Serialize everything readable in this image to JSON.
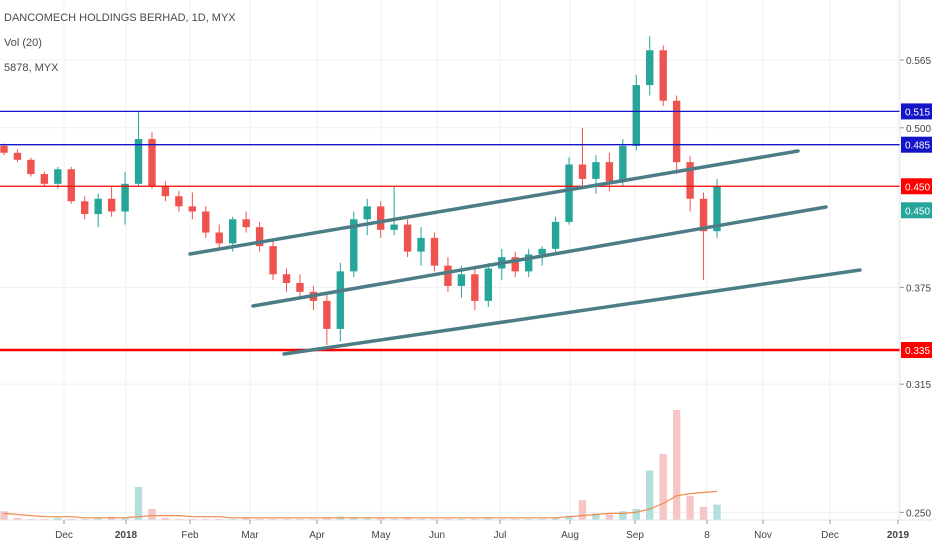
{
  "header": {
    "symbol_title": "DANCOMECH HOLDINGS BERHAD, 1D, MYX",
    "volume_indicator": "Vol (20)",
    "ticker_line": "5878, MYX"
  },
  "colors": {
    "up": "#26a69a",
    "down": "#ef5350",
    "channel": "#4c7d86",
    "blue_level": "#1414c8",
    "red_level": "#ff0000",
    "volume_ma": "#f28c4a"
  },
  "chart_data": {
    "type": "candlestick",
    "title": "DANCOMECH HOLDINGS BERHAD, 1D, MYX",
    "ylim": [
      0.203,
      0.59
    ],
    "y_scale": "log",
    "y_ticks": [
      "0.565",
      "0.500",
      "0.375",
      "0.315",
      "0.250"
    ],
    "x_ticks": [
      "Dec",
      "2018",
      "Feb",
      "Mar",
      "Apr",
      "May",
      "Jun",
      "Jul",
      "Aug",
      "Sep",
      "8",
      "Nov",
      "Dec",
      "2019"
    ],
    "last_price": 0.45,
    "grid": true,
    "price_series": [
      {
        "x": "Nov",
        "open": 0.484,
        "high": 0.486,
        "low": 0.476,
        "close": 0.478
      },
      {
        "x": "Nov",
        "open": 0.478,
        "high": 0.481,
        "low": 0.47,
        "close": 0.472
      },
      {
        "x": "Dec",
        "open": 0.472,
        "high": 0.474,
        "low": 0.458,
        "close": 0.46
      },
      {
        "x": "Dec",
        "open": 0.46,
        "high": 0.462,
        "low": 0.45,
        "close": 0.452
      },
      {
        "x": "Dec",
        "open": 0.452,
        "high": 0.466,
        "low": 0.448,
        "close": 0.464
      },
      {
        "x": "Dec",
        "open": 0.464,
        "high": 0.466,
        "low": 0.436,
        "close": 0.438
      },
      {
        "x": "Dec",
        "open": 0.438,
        "high": 0.442,
        "low": 0.424,
        "close": 0.428
      },
      {
        "x": "Dec",
        "open": 0.428,
        "high": 0.444,
        "low": 0.418,
        "close": 0.44
      },
      {
        "x": "2018",
        "open": 0.44,
        "high": 0.45,
        "low": 0.426,
        "close": 0.43
      },
      {
        "x": "2018",
        "open": 0.43,
        "high": 0.462,
        "low": 0.42,
        "close": 0.452
      },
      {
        "x": "2018",
        "open": 0.452,
        "high": 0.515,
        "low": 0.45,
        "close": 0.49
      },
      {
        "x": "2018",
        "open": 0.49,
        "high": 0.496,
        "low": 0.448,
        "close": 0.45
      },
      {
        "x": "2018",
        "open": 0.45,
        "high": 0.454,
        "low": 0.438,
        "close": 0.442
      },
      {
        "x": "2018",
        "open": 0.442,
        "high": 0.446,
        "low": 0.43,
        "close": 0.434
      },
      {
        "x": "2018",
        "open": 0.434,
        "high": 0.445,
        "low": 0.424,
        "close": 0.43
      },
      {
        "x": "Feb",
        "open": 0.43,
        "high": 0.434,
        "low": 0.41,
        "close": 0.414
      },
      {
        "x": "Feb",
        "open": 0.414,
        "high": 0.42,
        "low": 0.402,
        "close": 0.406
      },
      {
        "x": "Feb",
        "open": 0.406,
        "high": 0.426,
        "low": 0.4,
        "close": 0.424
      },
      {
        "x": "Feb",
        "open": 0.424,
        "high": 0.43,
        "low": 0.414,
        "close": 0.418
      },
      {
        "x": "Mar",
        "open": 0.418,
        "high": 0.422,
        "low": 0.4,
        "close": 0.404
      },
      {
        "x": "Mar",
        "open": 0.404,
        "high": 0.408,
        "low": 0.38,
        "close": 0.384
      },
      {
        "x": "Mar",
        "open": 0.384,
        "high": 0.388,
        "low": 0.372,
        "close": 0.378
      },
      {
        "x": "Mar",
        "open": 0.378,
        "high": 0.384,
        "low": 0.368,
        "close": 0.372
      },
      {
        "x": "Apr",
        "open": 0.372,
        "high": 0.376,
        "low": 0.36,
        "close": 0.366
      },
      {
        "x": "Apr",
        "open": 0.366,
        "high": 0.372,
        "low": 0.338,
        "close": 0.348
      },
      {
        "x": "Apr",
        "open": 0.348,
        "high": 0.392,
        "low": 0.34,
        "close": 0.386
      },
      {
        "x": "Apr",
        "open": 0.386,
        "high": 0.43,
        "low": 0.382,
        "close": 0.424
      },
      {
        "x": "May",
        "open": 0.424,
        "high": 0.44,
        "low": 0.412,
        "close": 0.434
      },
      {
        "x": "May",
        "open": 0.434,
        "high": 0.438,
        "low": 0.41,
        "close": 0.416
      },
      {
        "x": "May",
        "open": 0.416,
        "high": 0.45,
        "low": 0.412,
        "close": 0.42
      },
      {
        "x": "May",
        "open": 0.42,
        "high": 0.424,
        "low": 0.396,
        "close": 0.4
      },
      {
        "x": "Jun",
        "open": 0.4,
        "high": 0.418,
        "low": 0.39,
        "close": 0.41
      },
      {
        "x": "Jun",
        "open": 0.41,
        "high": 0.414,
        "low": 0.386,
        "close": 0.39
      },
      {
        "x": "Jun",
        "open": 0.39,
        "high": 0.396,
        "low": 0.372,
        "close": 0.376
      },
      {
        "x": "Jun",
        "open": 0.376,
        "high": 0.39,
        "low": 0.368,
        "close": 0.384
      },
      {
        "x": "Jul",
        "open": 0.384,
        "high": 0.388,
        "low": 0.36,
        "close": 0.366
      },
      {
        "x": "Jul",
        "open": 0.366,
        "high": 0.392,
        "low": 0.362,
        "close": 0.388
      },
      {
        "x": "Jul",
        "open": 0.388,
        "high": 0.402,
        "low": 0.38,
        "close": 0.396
      },
      {
        "x": "Jul",
        "open": 0.396,
        "high": 0.4,
        "low": 0.382,
        "close": 0.386
      },
      {
        "x": "Aug",
        "open": 0.386,
        "high": 0.402,
        "low": 0.382,
        "close": 0.398
      },
      {
        "x": "Aug",
        "open": 0.398,
        "high": 0.404,
        "low": 0.39,
        "close": 0.402
      },
      {
        "x": "Aug",
        "open": 0.402,
        "high": 0.426,
        "low": 0.398,
        "close": 0.422
      },
      {
        "x": "Sep",
        "open": 0.422,
        "high": 0.474,
        "low": 0.42,
        "close": 0.468
      },
      {
        "x": "Sep",
        "open": 0.468,
        "high": 0.5,
        "low": 0.448,
        "close": 0.456
      },
      {
        "x": "Sep",
        "open": 0.456,
        "high": 0.476,
        "low": 0.444,
        "close": 0.47
      },
      {
        "x": "Sep",
        "open": 0.47,
        "high": 0.478,
        "low": 0.446,
        "close": 0.454
      },
      {
        "x": "Sep",
        "open": 0.454,
        "high": 0.49,
        "low": 0.45,
        "close": 0.484
      },
      {
        "x": "Sep",
        "open": 0.484,
        "high": 0.55,
        "low": 0.48,
        "close": 0.54
      },
      {
        "x": "Sep",
        "open": 0.54,
        "high": 0.59,
        "low": 0.53,
        "close": 0.575
      },
      {
        "x": "Sep",
        "open": 0.575,
        "high": 0.58,
        "low": 0.52,
        "close": 0.525
      },
      {
        "x": "Sep",
        "open": 0.525,
        "high": 0.53,
        "low": 0.46,
        "close": 0.47
      },
      {
        "x": "8",
        "open": 0.47,
        "high": 0.475,
        "low": 0.43,
        "close": 0.44
      },
      {
        "x": "8",
        "open": 0.44,
        "high": 0.445,
        "low": 0.38,
        "close": 0.415
      },
      {
        "x": "8",
        "open": 0.415,
        "high": 0.456,
        "low": 0.41,
        "close": 0.45
      }
    ],
    "volume": [
      8,
      2,
      1,
      1,
      2,
      1,
      1,
      2,
      3,
      2,
      30,
      10,
      2,
      1,
      1,
      1,
      1,
      1,
      2,
      1,
      1,
      1,
      1,
      1,
      2,
      3,
      2,
      2,
      2,
      1,
      2,
      1,
      1,
      1,
      1,
      1,
      2,
      1,
      1,
      1,
      1,
      2,
      4,
      18,
      6,
      5,
      8,
      10,
      45,
      60,
      100,
      22,
      12,
      14
    ],
    "volume_ma": [
      6,
      5,
      4,
      3,
      3,
      3,
      2,
      2,
      2,
      2,
      3,
      4,
      4,
      4,
      3,
      3,
      3,
      2,
      2,
      2,
      2,
      2,
      2,
      2,
      2,
      2,
      2,
      2,
      2,
      2,
      2,
      2,
      2,
      2,
      2,
      2,
      2,
      2,
      2,
      2,
      2,
      2,
      3,
      4,
      5,
      6,
      6,
      7,
      10,
      15,
      22,
      24,
      25,
      26
    ],
    "horizontal_levels": [
      {
        "value": 0.515,
        "label": "0.515",
        "color": "#1414c8"
      },
      {
        "value": 0.485,
        "label": "0.485",
        "color": "#1414c8"
      },
      {
        "value": 0.45,
        "label": "0.450",
        "color": "#ff0000"
      },
      {
        "value": 0.335,
        "label": "0.335",
        "color": "#ff0000"
      }
    ],
    "last_price_label": "0.450",
    "channel_lines": [
      {
        "from": {
          "x": "Jan-end",
          "y": 0.412
        },
        "to": {
          "x": "Oct-end",
          "y": 0.49
        }
      },
      {
        "from": {
          "x": "Mar-mid",
          "y": 0.367
        },
        "to": {
          "x": "Nov-mid",
          "y": 0.45
        }
      },
      {
        "from": {
          "x": "Mar-end",
          "y": 0.335
        },
        "to": {
          "x": "Dec-mid",
          "y": 0.398
        }
      }
    ]
  }
}
